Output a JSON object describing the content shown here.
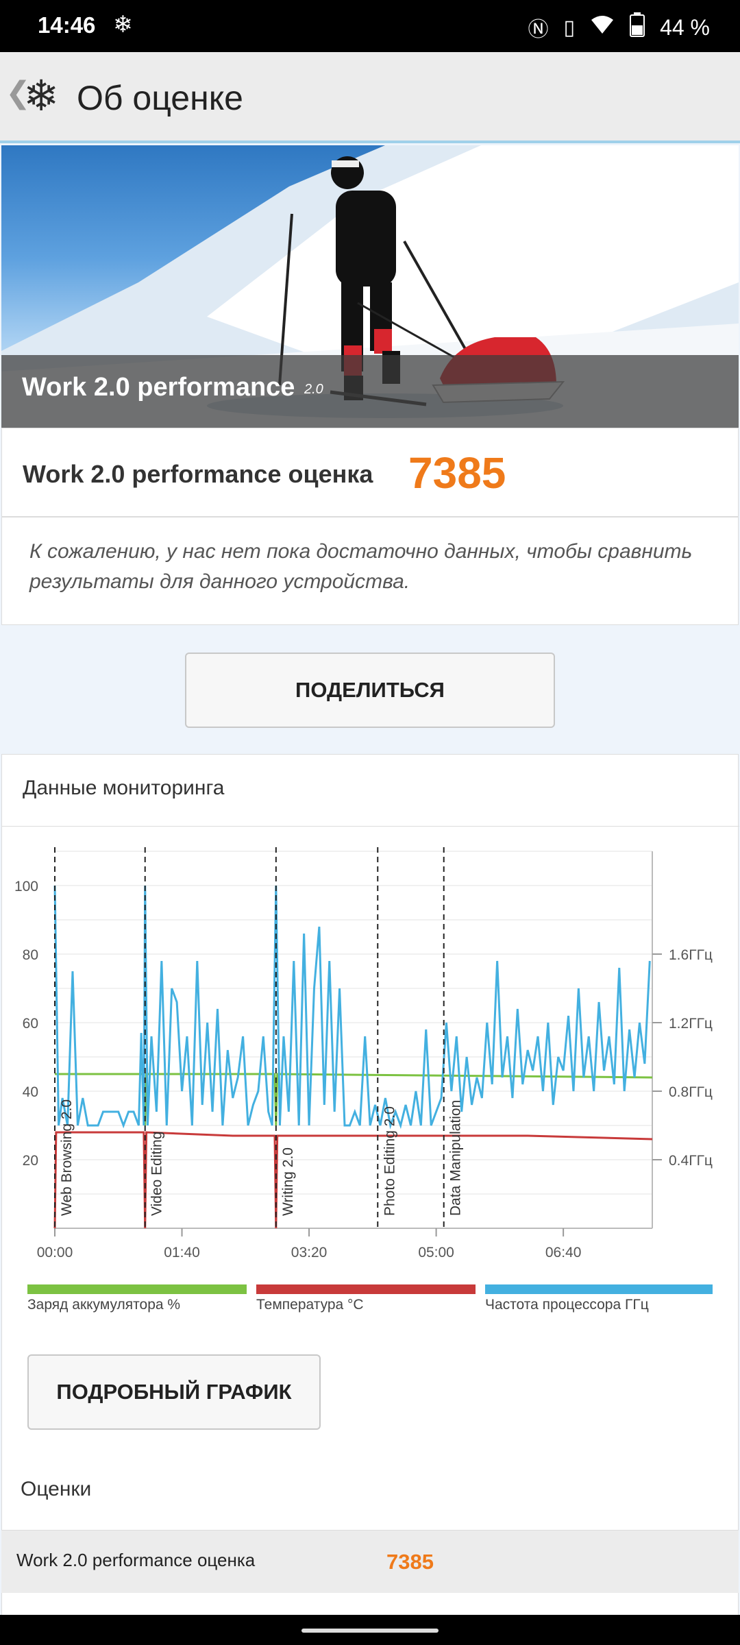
{
  "status_bar": {
    "time": "14:46",
    "battery": "44 %",
    "icons": [
      "snowflake-icon",
      "nfc-icon",
      "vibrate-icon",
      "wifi-icon",
      "battery-icon"
    ]
  },
  "header": {
    "title": "Об оценке",
    "back_icon": "back-arrow-icon",
    "logo_icon": "snowflake-logo-icon"
  },
  "hero": {
    "title": "Work 2.0 performance",
    "version": "2.0"
  },
  "score": {
    "label": "Work 2.0 performance оценка",
    "value": "7385"
  },
  "notice": "К сожалению, у нас нет пока достаточно данных, чтобы сравнить результаты для данного устройства.",
  "share_button": "ПОДЕЛИТЬСЯ",
  "monitoring": {
    "title": "Данные мониторинга",
    "detail_button": "ПОДРОБНЫЙ ГРАФИК",
    "legend": [
      {
        "label": "Заряд аккумулятора %",
        "color": "#7cc242"
      },
      {
        "label": "Температура °C",
        "color": "#c83a3a"
      },
      {
        "label": "Частота процессора ГГц",
        "color": "#43b0e0"
      }
    ]
  },
  "chart_data": {
    "type": "line",
    "x_unit": "time mm:ss",
    "x_ticks": [
      "00:00",
      "01:40",
      "03:20",
      "05:00",
      "06:40"
    ],
    "y_left_ticks": [
      "100",
      "80",
      "60",
      "40",
      "20"
    ],
    "y_right_ticks": [
      "1.6ГГц",
      "1.2ГГц",
      "0.8ГГц",
      "0.4ГГц"
    ],
    "ylim_left": [
      0,
      110
    ],
    "xlim_seconds": [
      0,
      470
    ],
    "markers": [
      {
        "label": "Web Browsing 2.0",
        "t": 0
      },
      {
        "label": "Video Editing",
        "t": 71
      },
      {
        "label": "Writing 2.0",
        "t": 174
      },
      {
        "label": "Photo Editing 2.0",
        "t": 254
      },
      {
        "label": "Data Manipulation",
        "t": 306
      }
    ],
    "series": [
      {
        "name": "Заряд аккумулятора %",
        "x": [
          0,
          1,
          70,
          71,
          72,
          173,
          174,
          175,
          470
        ],
        "y": [
          45,
          45,
          45,
          30,
          45,
          45,
          30,
          45,
          44
        ]
      },
      {
        "name": "Температура °C",
        "x": [
          0,
          1,
          70,
          71,
          72,
          140,
          173,
          174,
          175,
          372,
          470
        ],
        "y": [
          0,
          28,
          28,
          0,
          28,
          27,
          27,
          0,
          27,
          27,
          26
        ]
      },
      {
        "name": "Частота процессора ГГц",
        "x": [
          0,
          3,
          6,
          10,
          14,
          18,
          22,
          26,
          30,
          34,
          38,
          42,
          46,
          50,
          54,
          58,
          62,
          66,
          68,
          70,
          71,
          73,
          76,
          80,
          84,
          88,
          92,
          96,
          100,
          104,
          108,
          112,
          116,
          120,
          124,
          128,
          132,
          136,
          140,
          144,
          148,
          152,
          156,
          160,
          164,
          168,
          171,
          174,
          177,
          180,
          184,
          188,
          192,
          196,
          200,
          204,
          208,
          212,
          216,
          220,
          224,
          228,
          232,
          236,
          240,
          244,
          248,
          252,
          256,
          260,
          264,
          268,
          272,
          276,
          280,
          284,
          288,
          292,
          296,
          300,
          304,
          308,
          312,
          316,
          320,
          324,
          328,
          332,
          336,
          340,
          344,
          348,
          352,
          356,
          360,
          364,
          368,
          372,
          376,
          380,
          384,
          388,
          392,
          396,
          400,
          404,
          408,
          412,
          416,
          420,
          424,
          428,
          432,
          436,
          440,
          444,
          448,
          452,
          456,
          460,
          464,
          468
        ],
        "y": [
          100,
          30,
          38,
          30,
          75,
          30,
          38,
          30,
          30,
          30,
          34,
          34,
          34,
          34,
          30,
          34,
          34,
          30,
          57,
          30,
          100,
          30,
          56,
          34,
          78,
          30,
          70,
          66,
          40,
          56,
          30,
          78,
          36,
          60,
          34,
          64,
          30,
          52,
          38,
          44,
          56,
          30,
          36,
          40,
          56,
          34,
          30,
          100,
          30,
          56,
          34,
          78,
          30,
          86,
          30,
          70,
          88,
          36,
          78,
          34,
          70,
          30,
          30,
          34,
          30,
          56,
          30,
          36,
          30,
          38,
          30,
          34,
          30,
          36,
          30,
          40,
          30,
          58,
          30,
          34,
          38,
          60,
          40,
          56,
          34,
          50,
          36,
          44,
          38,
          60,
          42,
          78,
          44,
          56,
          38,
          64,
          42,
          52,
          46,
          56,
          40,
          60,
          36,
          50,
          46,
          62,
          40,
          70,
          44,
          56,
          40,
          66,
          46,
          56,
          42,
          76,
          40,
          58,
          44,
          60,
          48,
          78
        ]
      }
    ]
  },
  "scores_section": {
    "title": "Оценки",
    "rows": [
      {
        "label": "Work 2.0 performance оценка",
        "value": "7385"
      }
    ]
  }
}
